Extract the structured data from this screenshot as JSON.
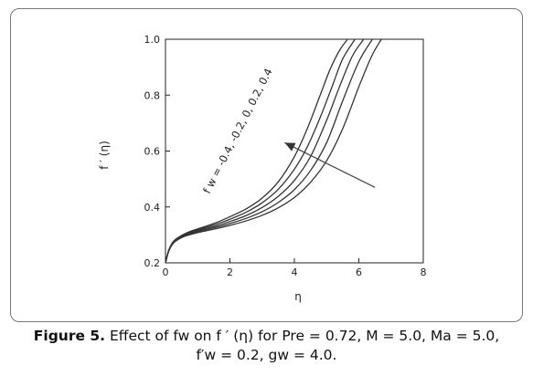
{
  "chart_data": {
    "type": "line",
    "title": "",
    "xlabel": "η",
    "ylabel": "f ′ (η)",
    "xlim": [
      0,
      8
    ],
    "ylim": [
      0.2,
      1.0
    ],
    "xticks": [
      0,
      2,
      4,
      6,
      8
    ],
    "yticks": [
      0.2,
      0.4,
      0.6,
      0.8,
      1.0
    ],
    "xtick_labels": [
      "0",
      "2",
      "4",
      "6",
      "8"
    ],
    "ytick_labels": [
      "0.2",
      "0.4",
      "0.6",
      "0.8",
      "1.0"
    ],
    "grid": false,
    "legend": "none",
    "line_color": "#333333",
    "series": [
      {
        "x": [
          0,
          0.1,
          0.25,
          0.5,
          0.8,
          1.2,
          1.6,
          2.0,
          2.5,
          3.0,
          3.5,
          4.0,
          4.4,
          4.8,
          5.1,
          5.4,
          5.65
        ],
        "values": [
          0.2,
          0.245,
          0.277,
          0.298,
          0.314,
          0.329,
          0.345,
          0.365,
          0.393,
          0.432,
          0.49,
          0.58,
          0.68,
          0.8,
          0.89,
          0.96,
          1.0
        ]
      },
      {
        "x": [
          0,
          0.1,
          0.25,
          0.5,
          0.8,
          1.2,
          1.6,
          2.0,
          2.5,
          3.0,
          3.5,
          4.0,
          4.4,
          4.8,
          5.2,
          5.5,
          5.88
        ],
        "values": [
          0.2,
          0.244,
          0.276,
          0.296,
          0.311,
          0.325,
          0.339,
          0.356,
          0.381,
          0.415,
          0.463,
          0.535,
          0.615,
          0.72,
          0.84,
          0.93,
          1.0
        ]
      },
      {
        "x": [
          0,
          0.1,
          0.25,
          0.5,
          0.8,
          1.2,
          1.6,
          2.0,
          2.5,
          3.0,
          3.5,
          4.0,
          4.5,
          5.0,
          5.4,
          5.8,
          6.15
        ],
        "values": [
          0.2,
          0.243,
          0.274,
          0.294,
          0.308,
          0.321,
          0.333,
          0.348,
          0.369,
          0.398,
          0.438,
          0.495,
          0.58,
          0.71,
          0.83,
          0.94,
          1.0
        ]
      },
      {
        "x": [
          0,
          0.1,
          0.25,
          0.5,
          0.8,
          1.2,
          1.6,
          2.0,
          2.5,
          3.0,
          3.5,
          4.0,
          4.5,
          5.0,
          5.5,
          6.0,
          6.42
        ],
        "values": [
          0.2,
          0.242,
          0.273,
          0.292,
          0.305,
          0.317,
          0.328,
          0.341,
          0.359,
          0.383,
          0.416,
          0.462,
          0.53,
          0.63,
          0.78,
          0.92,
          1.0
        ]
      },
      {
        "x": [
          0,
          0.1,
          0.25,
          0.5,
          0.8,
          1.2,
          1.6,
          2.0,
          2.5,
          3.0,
          3.5,
          4.0,
          4.5,
          5.0,
          5.5,
          6.0,
          6.4,
          6.7
        ],
        "values": [
          0.2,
          0.241,
          0.271,
          0.29,
          0.302,
          0.313,
          0.323,
          0.334,
          0.35,
          0.37,
          0.397,
          0.434,
          0.488,
          0.565,
          0.68,
          0.83,
          0.94,
          1.0
        ]
      }
    ],
    "annotation": {
      "text": "f w = -0.4, -0.2, 0, 0.2, 0.4",
      "arrow_from": [
        6.5,
        0.47
      ],
      "arrow_to": [
        3.7,
        0.63
      ]
    }
  },
  "caption": {
    "figure_label": "Figure 5.",
    "line1": "Effect of fw on f ′ (η) for Pre = 0.72, M = 5.0, Ma = 5.0,",
    "line2": "f′w = 0.2, gw = 4.0."
  }
}
